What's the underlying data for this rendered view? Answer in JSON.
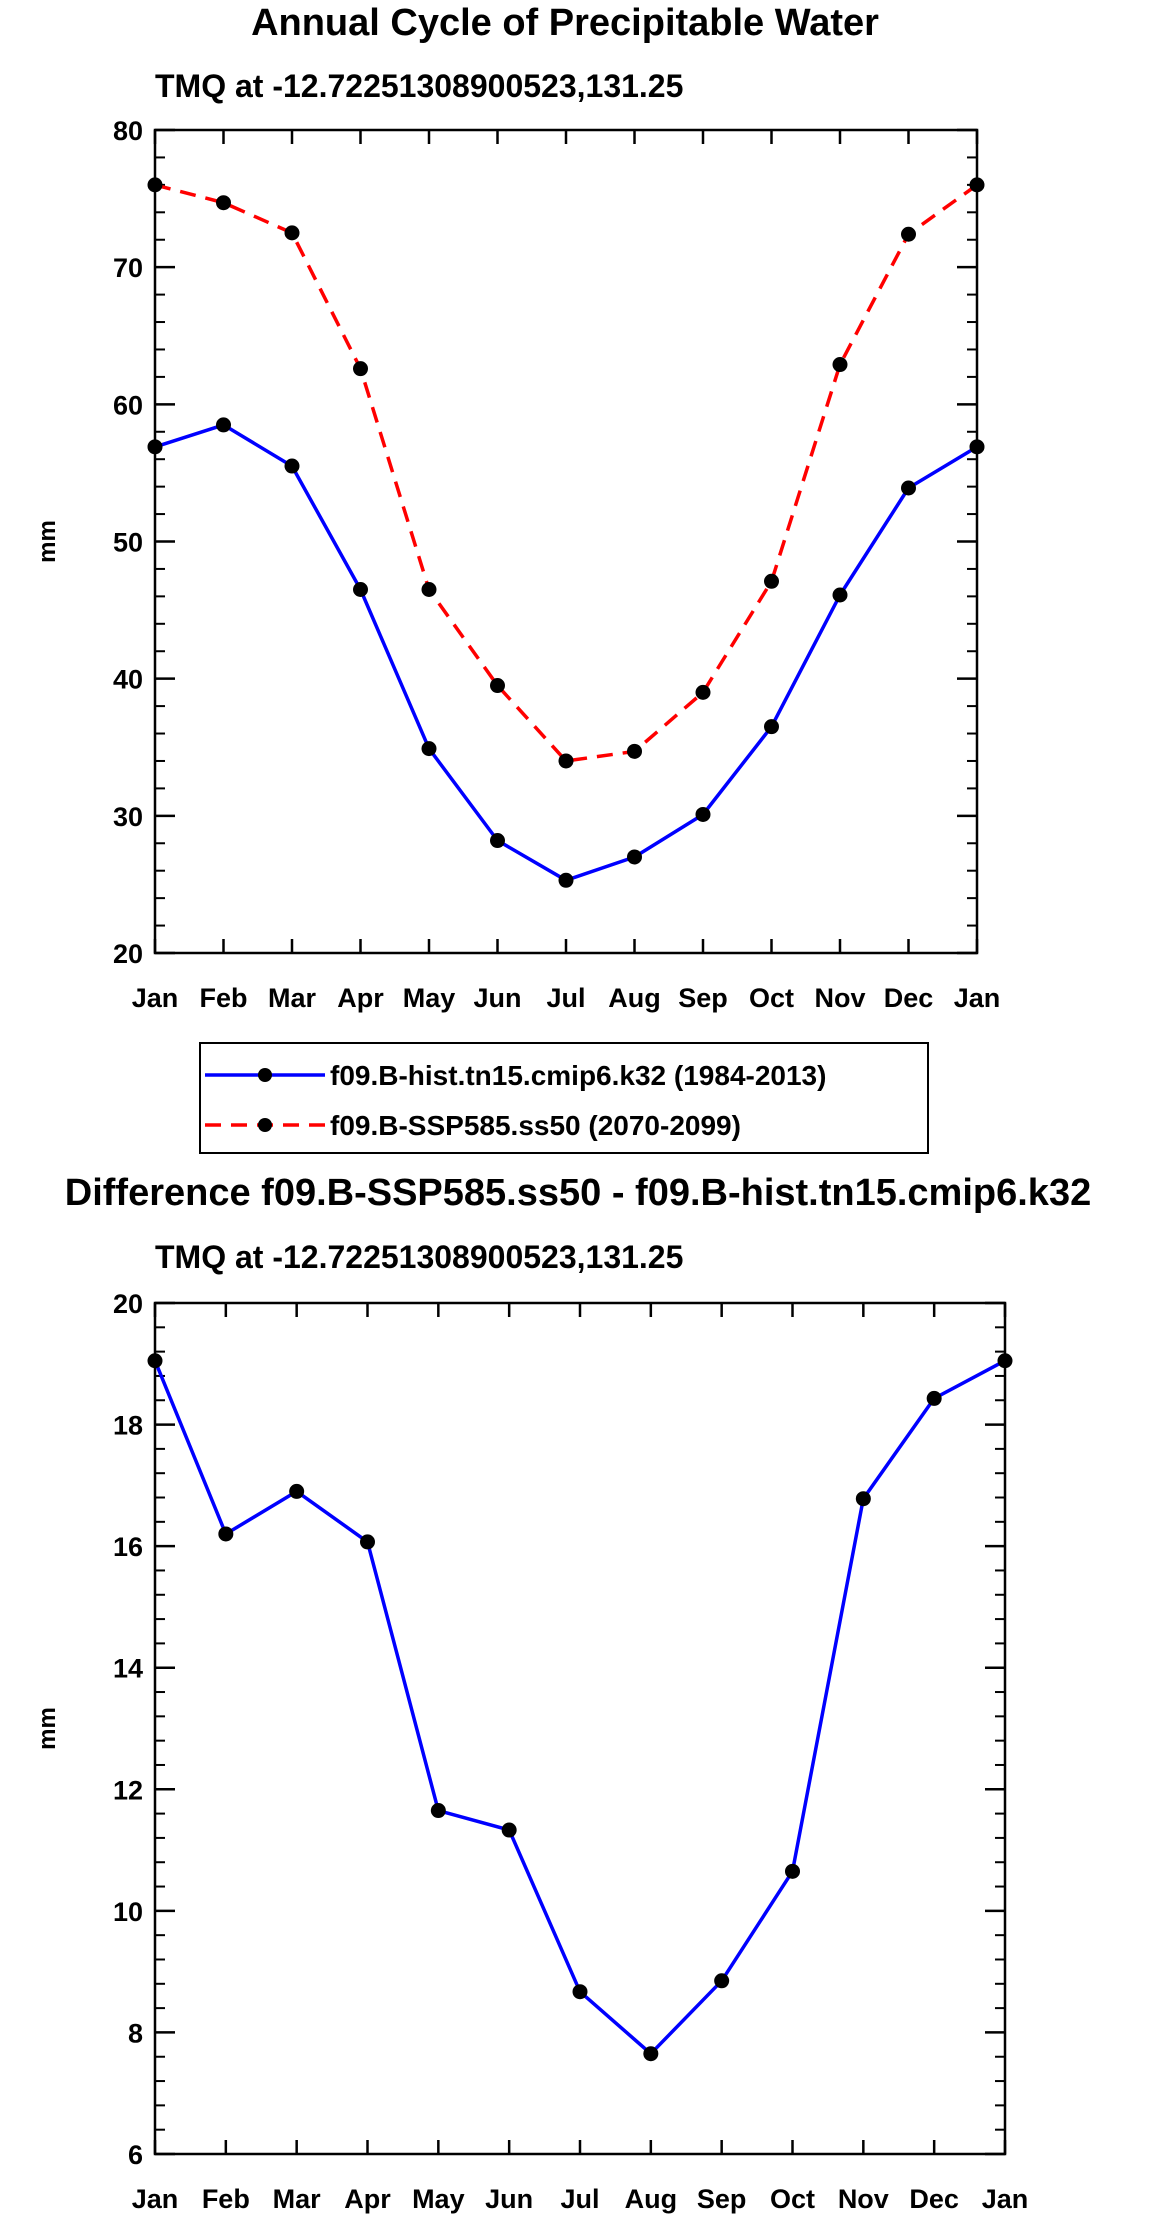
{
  "chart_data": [
    {
      "type": "line",
      "title": "Annual Cycle of Precipitable Water",
      "subtitle": "TMQ at -12.72251308900523,131.25",
      "xlabel": "",
      "ylabel": "mm",
      "categories": [
        "Jan",
        "Feb",
        "Mar",
        "Apr",
        "May",
        "Jun",
        "Jul",
        "Aug",
        "Sep",
        "Oct",
        "Nov",
        "Dec",
        "Jan"
      ],
      "ylim": [
        20,
        80
      ],
      "yticks": [
        "20",
        "30",
        "40",
        "50",
        "60",
        "70",
        "80"
      ],
      "series": [
        {
          "name": "f09.B-hist.tn15.cmip6.k32 (1984-2013)",
          "color": "#0000ff",
          "style": "solid",
          "values": [
            56.9,
            58.5,
            55.5,
            46.5,
            34.9,
            28.2,
            25.3,
            27.0,
            30.1,
            36.5,
            46.1,
            53.9,
            56.9
          ]
        },
        {
          "name": "f09.B-SSP585.ss50 (2070-2099)",
          "color": "#ff0000",
          "style": "dashed",
          "values": [
            76.0,
            74.7,
            72.5,
            62.6,
            46.5,
            39.5,
            34.0,
            34.7,
            39.0,
            47.1,
            62.9,
            72.4,
            76.0
          ]
        }
      ],
      "legend": "bottom-center"
    },
    {
      "type": "line",
      "title": "Difference f09.B-SSP585.ss50 - f09.B-hist.tn15.cmip6.k32",
      "subtitle": "TMQ at -12.72251308900523,131.25",
      "xlabel": "",
      "ylabel": "mm",
      "categories": [
        "Jan",
        "Feb",
        "Mar",
        "Apr",
        "May",
        "Jun",
        "Jul",
        "Aug",
        "Sep",
        "Oct",
        "Nov",
        "Dec",
        "Jan"
      ],
      "ylim": [
        6,
        20
      ],
      "yticks": [
        "6",
        "8",
        "10",
        "12",
        "14",
        "16",
        "18",
        "20"
      ],
      "series": [
        {
          "name": "difference",
          "color": "#0000ff",
          "style": "solid",
          "values": [
            19.05,
            16.2,
            16.9,
            16.07,
            11.65,
            11.33,
            8.67,
            7.65,
            8.85,
            10.65,
            16.78,
            18.43,
            19.05
          ]
        }
      ]
    }
  ]
}
